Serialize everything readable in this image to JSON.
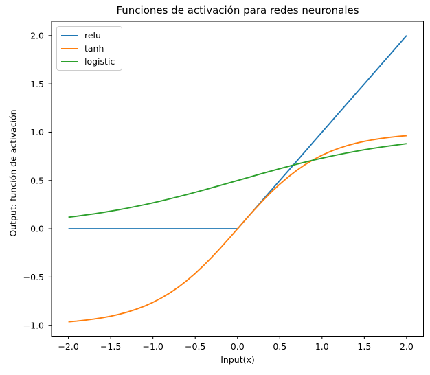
{
  "figure": {
    "background": "#ffffff"
  },
  "chart_data": {
    "type": "line",
    "title": "Funciones de activación para redes neuronales",
    "xlabel": "Input(x)",
    "ylabel": "Output: función de activación",
    "xlim": [
      -2.2,
      2.2
    ],
    "ylim": [
      -1.1122,
      2.1482
    ],
    "xticks": [
      -2.0,
      -1.5,
      -1.0,
      -0.5,
      0.0,
      0.5,
      1.0,
      1.5,
      2.0
    ],
    "yticks": [
      -1.0,
      -0.5,
      0.0,
      0.5,
      1.0,
      1.5,
      2.0
    ],
    "grid": false,
    "axis_color": "#000000",
    "legend": {
      "position": "upper-left",
      "entries": [
        "relu",
        "tanh",
        "logistic"
      ]
    },
    "x": [
      -2.0,
      -1.9,
      -1.8,
      -1.7,
      -1.6,
      -1.5,
      -1.4,
      -1.3,
      -1.2,
      -1.1,
      -1.0,
      -0.9,
      -0.8,
      -0.7,
      -0.6,
      -0.5,
      -0.4,
      -0.3,
      -0.2,
      -0.1,
      0.0,
      0.1,
      0.2,
      0.3,
      0.4,
      0.5,
      0.6,
      0.7,
      0.8,
      0.9,
      1.0,
      1.1,
      1.2,
      1.3,
      1.4,
      1.5,
      1.6,
      1.7,
      1.8,
      1.9,
      2.0
    ],
    "series": [
      {
        "name": "relu",
        "color": "#1f77b4",
        "values": [
          0,
          0,
          0,
          0,
          0,
          0,
          0,
          0,
          0,
          0,
          0,
          0,
          0,
          0,
          0,
          0,
          0,
          0,
          0,
          0,
          0,
          0.1,
          0.2,
          0.3,
          0.4,
          0.5,
          0.6,
          0.7,
          0.8,
          0.9,
          1.0,
          1.1,
          1.2,
          1.3,
          1.4,
          1.5,
          1.6,
          1.7,
          1.8,
          1.9,
          2.0
        ]
      },
      {
        "name": "tanh",
        "color": "#ff7f0e",
        "values": [
          -0.964,
          -0.9562,
          -0.9468,
          -0.9354,
          -0.9217,
          -0.9051,
          -0.8854,
          -0.8617,
          -0.8337,
          -0.8005,
          -0.7616,
          -0.7163,
          -0.664,
          -0.6044,
          -0.537,
          -0.4621,
          -0.3799,
          -0.2913,
          -0.1974,
          -0.0997,
          0,
          0.0997,
          0.1974,
          0.2913,
          0.3799,
          0.4621,
          0.537,
          0.6044,
          0.664,
          0.7163,
          0.7616,
          0.8005,
          0.8337,
          0.8617,
          0.8854,
          0.9051,
          0.9217,
          0.9354,
          0.9468,
          0.9562,
          0.964
        ]
      },
      {
        "name": "logistic",
        "color": "#2ca02c",
        "values": [
          0.1192,
          0.1301,
          0.1419,
          0.1545,
          0.168,
          0.1824,
          0.1978,
          0.2142,
          0.2315,
          0.2497,
          0.2689,
          0.2891,
          0.31,
          0.3318,
          0.3543,
          0.3775,
          0.4013,
          0.4256,
          0.4502,
          0.475,
          0.5,
          0.525,
          0.5498,
          0.5744,
          0.5987,
          0.6225,
          0.6457,
          0.6682,
          0.69,
          0.7109,
          0.7311,
          0.7503,
          0.7685,
          0.7858,
          0.8022,
          0.8176,
          0.832,
          0.8455,
          0.8581,
          0.8699,
          0.8808
        ]
      }
    ]
  }
}
